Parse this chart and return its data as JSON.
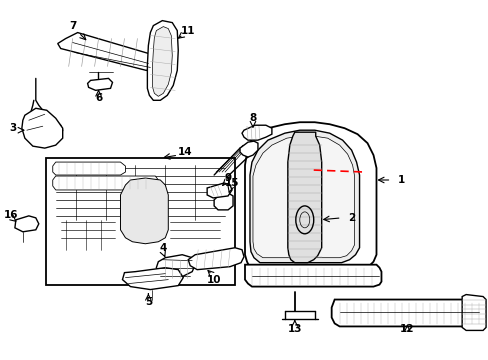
{
  "bg_color": "#ffffff",
  "line_color": "#000000",
  "red_color": "#ff0000",
  "lw_main": 1.0,
  "lw_thin": 0.5,
  "lw_thick": 1.3
}
